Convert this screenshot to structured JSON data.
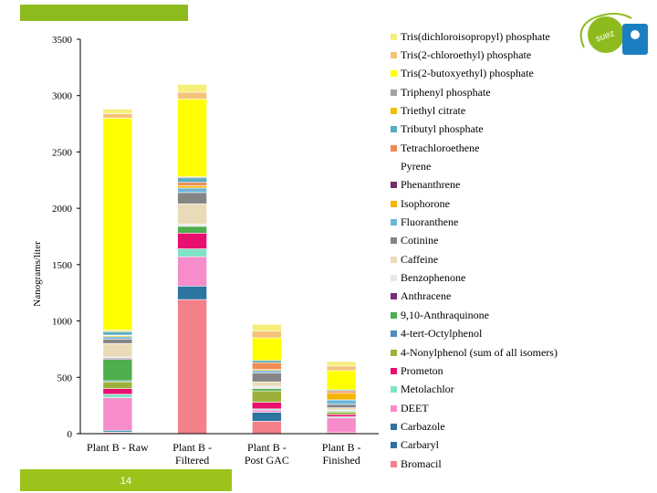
{
  "page_number": "14",
  "chart_data": {
    "type": "bar",
    "stacked": true,
    "ylabel": "Nanograms/liter",
    "ylim": [
      0,
      3500
    ],
    "yticks": [
      0,
      500,
      1000,
      1500,
      2000,
      2500,
      3000,
      3500
    ],
    "categories": [
      "Plant B - Raw",
      "Plant B - Filtered",
      "Plant B - Post GAC",
      "Plant B - Finished"
    ],
    "series": [
      {
        "name": "Bromacil",
        "color": "#f4818a",
        "values": [
          10,
          1190,
          110,
          10
        ]
      },
      {
        "name": "Carbaryl",
        "color": "#2f6fa8",
        "values": [
          5,
          0,
          0,
          0
        ]
      },
      {
        "name": "Carbazole",
        "color": "#2c75a0",
        "values": [
          15,
          120,
          80,
          0
        ]
      },
      {
        "name": "DEET",
        "color": "#f78ccb",
        "values": [
          290,
          260,
          20,
          130
        ]
      },
      {
        "name": "Metolachlor",
        "color": "#7fe3c8",
        "values": [
          30,
          70,
          10,
          10
        ]
      },
      {
        "name": "Prometon",
        "color": "#e8106e",
        "values": [
          50,
          140,
          60,
          20
        ]
      },
      {
        "name": "4-Nonylphenol (sum of all isomers)",
        "color": "#9bb139",
        "values": [
          60,
          0,
          100,
          20
        ]
      },
      {
        "name": "4-tert-Octylphenol",
        "color": "#4d8bc0",
        "values": [
          10,
          0,
          0,
          0
        ]
      },
      {
        "name": "9,10-Anthraquinone",
        "color": "#4cae4c",
        "values": [
          190,
          60,
          20,
          10
        ]
      },
      {
        "name": "Anthracene",
        "color": "#7a2c7a",
        "values": [
          10,
          0,
          0,
          0
        ]
      },
      {
        "name": "Benzophenone",
        "color": "#e8e8e8",
        "values": [
          10,
          20,
          20,
          10
        ]
      },
      {
        "name": "Caffeine",
        "color": "#eadbb8",
        "values": [
          120,
          180,
          40,
          20
        ]
      },
      {
        "name": "Cotinine",
        "color": "#858585",
        "values": [
          40,
          100,
          80,
          30
        ]
      },
      {
        "name": "Fluoranthene",
        "color": "#6fb5d9",
        "values": [
          20,
          40,
          20,
          40
        ]
      },
      {
        "name": "Isophorone",
        "color": "#f5b400",
        "values": [
          10,
          20,
          10,
          60
        ]
      },
      {
        "name": "Phenanthrene",
        "color": "#7a2c6a",
        "values": [
          5,
          0,
          0,
          0
        ]
      },
      {
        "name": "Pyrene",
        "color": "#ffffff",
        "values": [
          0,
          0,
          0,
          0
        ]
      },
      {
        "name": "Tetrachloroethene",
        "color": "#ef8c52",
        "values": [
          0,
          30,
          60,
          20
        ]
      },
      {
        "name": "Tributyl phosphate",
        "color": "#5aacbe",
        "values": [
          30,
          40,
          20,
          10
        ]
      },
      {
        "name": "Triethyl citrate",
        "color": "#f2c000",
        "values": [
          10,
          0,
          0,
          0
        ]
      },
      {
        "name": "Triphenyl phosphate",
        "color": "#a3a3a3",
        "values": [
          5,
          10,
          0,
          0
        ]
      },
      {
        "name": "Tris(2-butoxyethyl) phosphate",
        "color": "#ffff00",
        "values": [
          1880,
          690,
          200,
          170
        ]
      },
      {
        "name": "Tris(2-chloroethyl) phosphate",
        "color": "#f5c27a",
        "values": [
          40,
          60,
          60,
          40
        ]
      },
      {
        "name": "Tris(dichloroisopropyl) phosphate",
        "color": "#f5ef7a",
        "values": [
          40,
          70,
          60,
          40
        ]
      }
    ]
  }
}
